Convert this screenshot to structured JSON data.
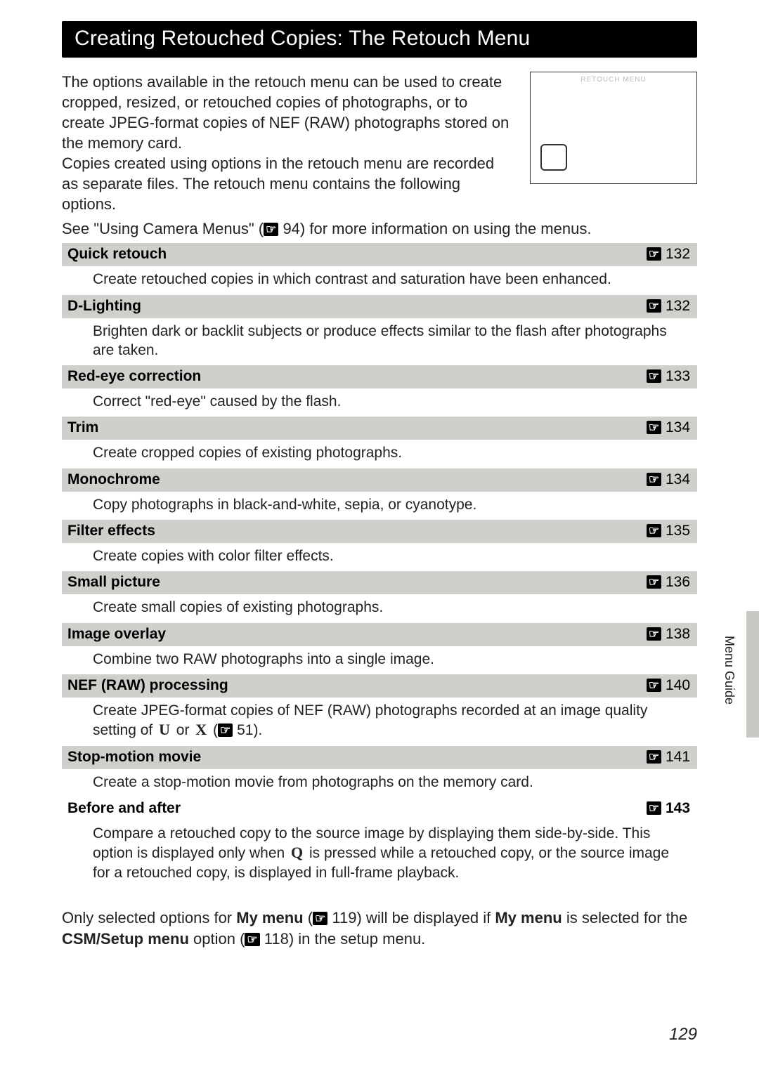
{
  "header": {
    "title": "Creating Retouched Copies: The Retouch Menu"
  },
  "intro": {
    "p1": "The options available in the retouch menu can be used to create cropped, resized, or retouched copies of photographs, or to create JPEG-format copies of NEF (RAW) photographs stored on the memory card.",
    "p2": "Copies created using options in the retouch menu are recorded as separate files. The retouch menu contains the following options.",
    "p3_a": "See \"Using Camera Menus\" (",
    "p3_b": " 94) for more information on using the menus."
  },
  "screenshot": {
    "label": "RETOUCH MENU"
  },
  "ref_icon": "☞",
  "items": [
    {
      "name": "Quick retouch",
      "page": " 132",
      "desc": "Create retouched copies in which contrast and saturation have been enhanced."
    },
    {
      "name": "D-Lighting",
      "page": " 132",
      "desc": "Brighten dark or backlit subjects or produce effects similar to the flash after photographs are taken."
    },
    {
      "name": "Red-eye correction",
      "page": " 133",
      "desc": "Correct \"red-eye\" caused by the flash."
    },
    {
      "name": "Trim",
      "page": " 134",
      "desc": "Create cropped copies of existing photographs."
    },
    {
      "name": "Monochrome",
      "page": " 134",
      "desc": "Copy photographs in black-and-white, sepia, or cyanotype."
    },
    {
      "name": "Filter effects",
      "page": " 135",
      "desc": "Create copies with color filter effects."
    },
    {
      "name": "Small picture",
      "page": " 136",
      "desc": "Create small copies of existing photographs."
    },
    {
      "name": "Image overlay",
      "page": " 138",
      "desc": "Combine two RAW photographs into a single image."
    },
    {
      "name": "NEF (RAW) processing",
      "page": " 140",
      "desc_a": "Create JPEG-format copies of NEF (RAW) photographs recorded at an image quality setting of ",
      "desc_u": "U",
      "desc_or": " or ",
      "desc_x": "X",
      "desc_b": " (",
      "desc_c": " 51)."
    },
    {
      "name": "Stop-motion movie",
      "page": " 141",
      "desc": "Create a stop-motion movie from photographs on the memory card."
    }
  ],
  "before_after": {
    "name": "Before and after",
    "page": " 143",
    "desc_a": "Compare a retouched copy to the source image by displaying them side-by-side. This option is displayed only when ",
    "desc_q": "Q",
    "desc_b": " is pressed while a retouched copy, or the source image for a retouched copy, is displayed in full-frame playback."
  },
  "footer_note": {
    "a": "Only selected options for ",
    "my_menu": "My menu",
    "b": " (",
    "c": " 119) will be displayed if ",
    "d": " is selected for the ",
    "csm": "CSM/Setup menu",
    "e": " option (",
    "f": " 118) in the setup menu."
  },
  "side_tab": "Menu Guide",
  "page_number": "129"
}
